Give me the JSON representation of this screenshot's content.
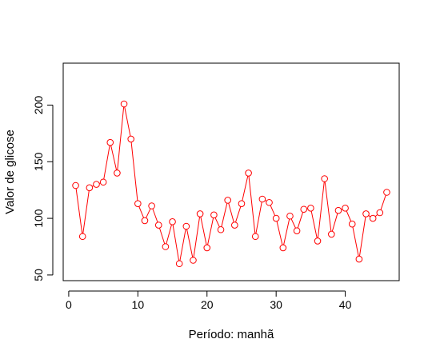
{
  "chart_data": {
    "type": "line",
    "title": "",
    "xlabel": "Período: manhã",
    "ylabel": "Valor de glicose",
    "xlim": [
      -0.8,
      47.8
    ],
    "ylim": [
      45,
      237
    ],
    "xticks": [
      0,
      10,
      20,
      30,
      40
    ],
    "yticks": [
      50,
      100,
      150,
      200
    ],
    "grid": false,
    "legend": "none",
    "series": [
      {
        "color": "#ff0000",
        "marker": "open-circle",
        "x": [
          1,
          2,
          3,
          4,
          5,
          6,
          7,
          8,
          9,
          10,
          11,
          12,
          13,
          14,
          15,
          16,
          17,
          18,
          19,
          20,
          21,
          22,
          23,
          24,
          25,
          26,
          27,
          28,
          29,
          30,
          31,
          32,
          33,
          34,
          35,
          36,
          37,
          38,
          39,
          40,
          41,
          42,
          43,
          44,
          45,
          46
        ],
        "values": [
          129,
          84,
          127,
          130,
          132,
          167,
          140,
          201,
          170,
          113,
          98,
          111,
          94,
          75,
          97,
          60,
          93,
          63,
          104,
          74,
          103,
          90,
          116,
          94,
          113,
          140,
          84,
          117,
          114,
          100,
          74,
          102,
          89,
          108,
          109,
          80,
          135,
          86,
          107,
          109,
          95,
          64,
          104,
          100,
          105,
          123
        ]
      }
    ]
  }
}
